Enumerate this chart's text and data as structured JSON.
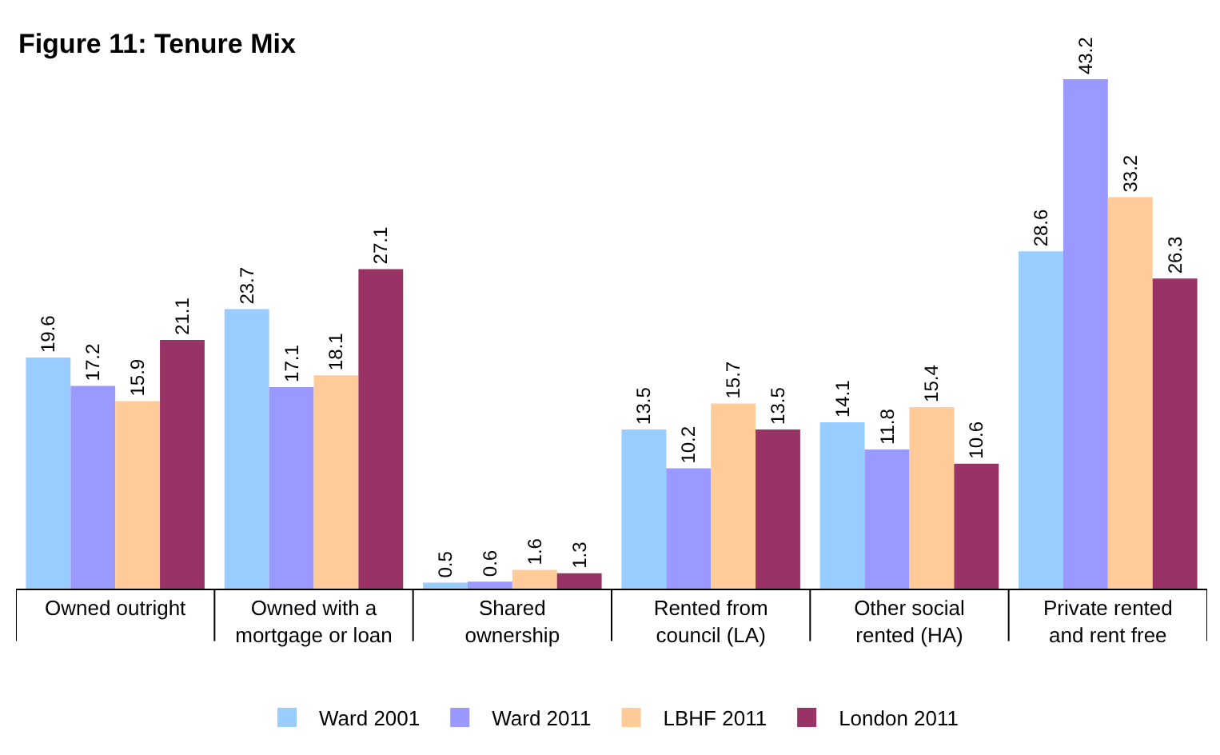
{
  "chart_data": {
    "type": "bar",
    "title": "Figure 11: Tenure Mix",
    "categories": [
      "Owned outright",
      "Owned with a\nmortgage or loan",
      "Shared\nownership",
      "Rented from\ncouncil (LA)",
      "Other social\nrented (HA)",
      "Private rented\nand rent free"
    ],
    "series": [
      {
        "name": "Ward 2001",
        "color": "#99ccff",
        "values": [
          19.6,
          23.7,
          0.5,
          13.5,
          14.1,
          28.6
        ]
      },
      {
        "name": "Ward 2011",
        "color": "#9999ff",
        "values": [
          17.2,
          17.1,
          0.6,
          10.2,
          11.8,
          43.2
        ]
      },
      {
        "name": "LBHF 2011",
        "color": "#ffcc99",
        "values": [
          15.9,
          18.1,
          1.6,
          15.7,
          15.4,
          33.2
        ]
      },
      {
        "name": "London 2011",
        "color": "#993366",
        "values": [
          21.1,
          27.1,
          1.3,
          13.5,
          10.6,
          26.3
        ]
      }
    ],
    "data_labels": true,
    "grid": false,
    "legend": "bottom",
    "tick_labels": "x"
  }
}
